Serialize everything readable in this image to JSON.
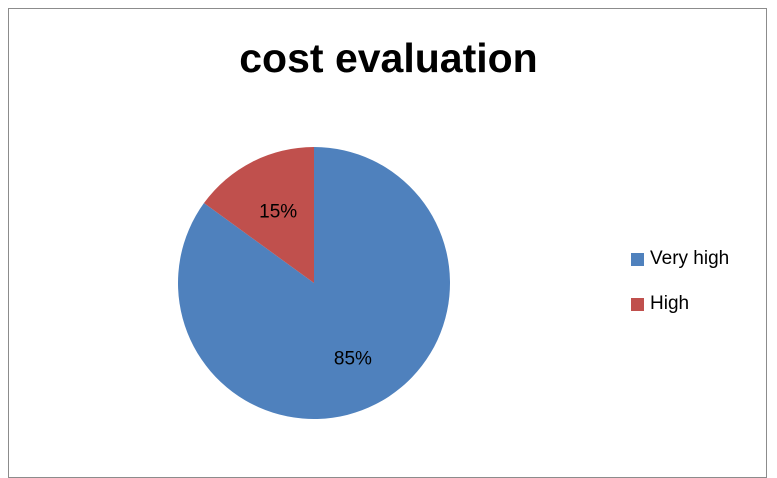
{
  "chart_data": {
    "type": "pie",
    "title": "cost evaluation",
    "categories": [
      "Very high",
      "High"
    ],
    "values": [
      85,
      15
    ],
    "labels": [
      "85%",
      "15%"
    ],
    "colors": [
      "#4f81bd",
      "#c0504d"
    ],
    "legend_position": "right"
  }
}
